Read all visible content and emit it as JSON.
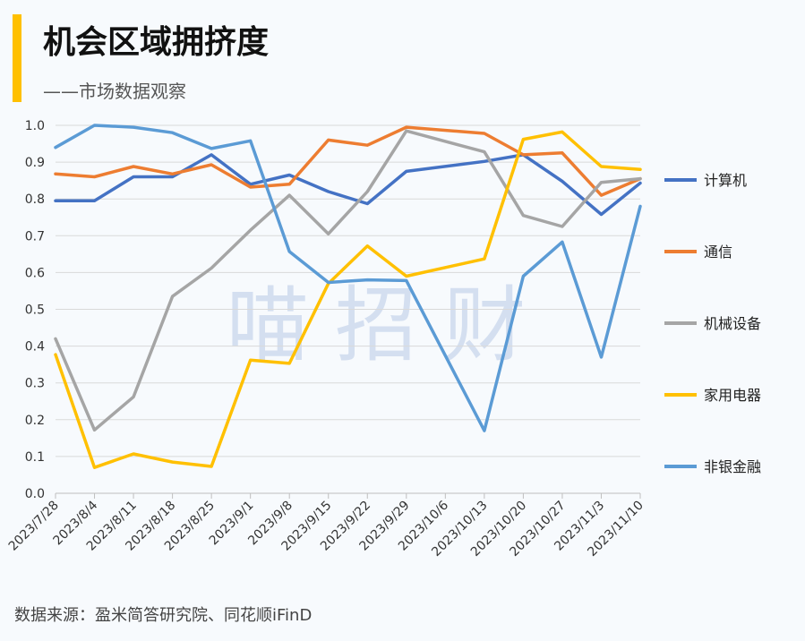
{
  "header": {
    "title": "机会区域拥挤度",
    "subtitle": "——市场数据观察",
    "accent_color": "#ffc000"
  },
  "footer": {
    "source": "数据来源：盈米简答研究院、同花顺iFinD"
  },
  "watermark": "喵  招  财",
  "chart_data": {
    "type": "line",
    "title": "机会区域拥挤度",
    "xlabel": "",
    "ylabel": "",
    "ylim": [
      0,
      1.0
    ],
    "yticks": [
      "0.0",
      "0.1",
      "0.2",
      "0.3",
      "0.4",
      "0.5",
      "0.6",
      "0.7",
      "0.8",
      "0.9",
      "1.0"
    ],
    "grid": true,
    "legend_position": "right",
    "x": [
      "2023/7/28",
      "2023/8/4",
      "2023/8/11",
      "2023/8/18",
      "2023/8/25",
      "2023/9/1",
      "2023/9/8",
      "2023/9/15",
      "2023/9/22",
      "2023/9/29",
      "2023/10/6",
      "2023/10/13",
      "2023/10/20",
      "2023/10/27",
      "2023/11/3",
      "2023/11/10"
    ],
    "series": [
      {
        "name": "计算机",
        "color": "#4472c4",
        "values": [
          0.795,
          0.795,
          0.86,
          0.86,
          0.92,
          0.84,
          0.865,
          0.82,
          0.787,
          0.875,
          null,
          0.902,
          0.92,
          0.848,
          0.758,
          0.843
        ]
      },
      {
        "name": "通信",
        "color": "#ed7d31",
        "values": [
          0.868,
          0.86,
          0.888,
          0.868,
          0.893,
          0.832,
          0.84,
          0.96,
          0.946,
          0.995,
          null,
          0.978,
          0.92,
          0.925,
          0.81,
          0.855
        ]
      },
      {
        "name": "机械设备",
        "color": "#a5a5a5",
        "values": [
          0.42,
          0.172,
          0.262,
          0.535,
          0.612,
          0.715,
          0.81,
          0.705,
          0.82,
          0.985,
          null,
          0.928,
          0.755,
          0.725,
          0.845,
          0.855
        ]
      },
      {
        "name": "家用电器",
        "color": "#ffc000",
        "values": [
          0.377,
          0.07,
          0.107,
          0.085,
          0.073,
          0.362,
          0.353,
          0.57,
          0.672,
          0.59,
          null,
          0.637,
          0.962,
          0.982,
          0.888,
          0.88
        ]
      },
      {
        "name": "非银金融",
        "color": "#5b9bd5",
        "values": [
          0.94,
          1.0,
          0.995,
          0.98,
          0.937,
          0.958,
          0.657,
          0.573,
          0.58,
          0.578,
          null,
          0.17,
          0.59,
          0.683,
          0.37,
          0.78
        ]
      }
    ]
  }
}
